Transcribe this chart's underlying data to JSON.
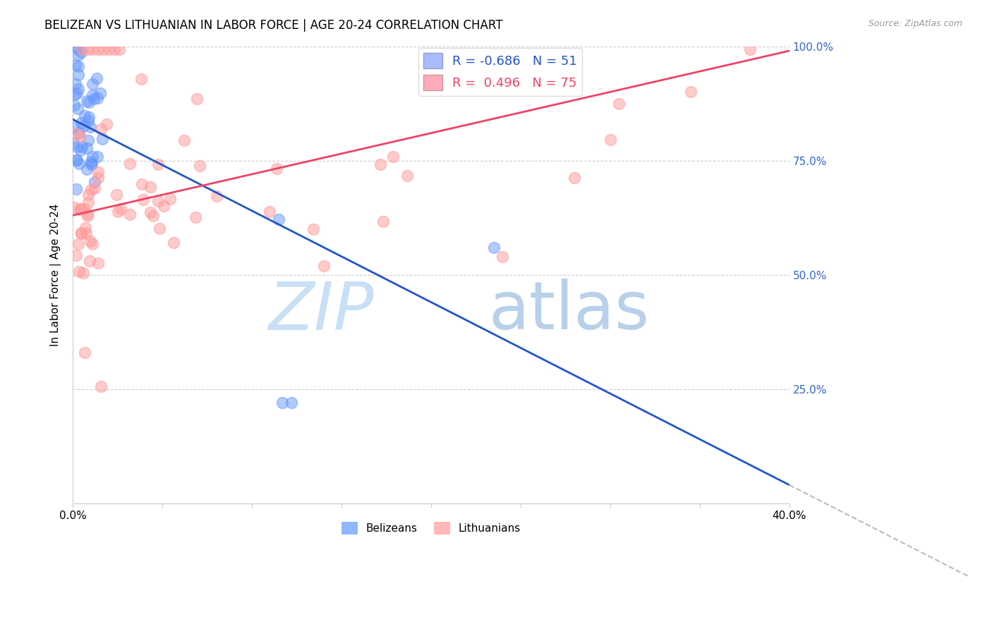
{
  "title": "BELIZEAN VS LITHUANIAN IN LABOR FORCE | AGE 20-24 CORRELATION CHART",
  "source": "Source: ZipAtlas.com",
  "ylabel": "In Labor Force | Age 20-24",
  "xmin": 0.0,
  "xmax": 0.4,
  "ymin": 0.0,
  "ymax": 1.0,
  "belizean_color": "#6699ff",
  "lithuanian_color": "#ff9999",
  "belizean_line_color": "#2255cc",
  "lithuanian_line_color": "#ee4466",
  "belizean_fill_color": "#aabbff",
  "lithuanian_fill_color": "#ffaabb",
  "legend_R_belizean": "-0.686",
  "legend_N_belizean": "51",
  "legend_R_lithuanian": "0.496",
  "legend_N_lithuanian": "75",
  "watermark_zip_color": "#c8dff5",
  "watermark_atlas_color": "#b8d0ea",
  "grid_color": "#cccccc",
  "right_axis_color": "#3366cc",
  "title_fontsize": 12,
  "tick_fontsize": 11,
  "legend_fontsize": 13,
  "ylabel_fontsize": 11,
  "source_fontsize": 9,
  "bel_slope": -2.0,
  "bel_intercept": 0.84,
  "lit_slope": 0.9,
  "lit_intercept": 0.63
}
